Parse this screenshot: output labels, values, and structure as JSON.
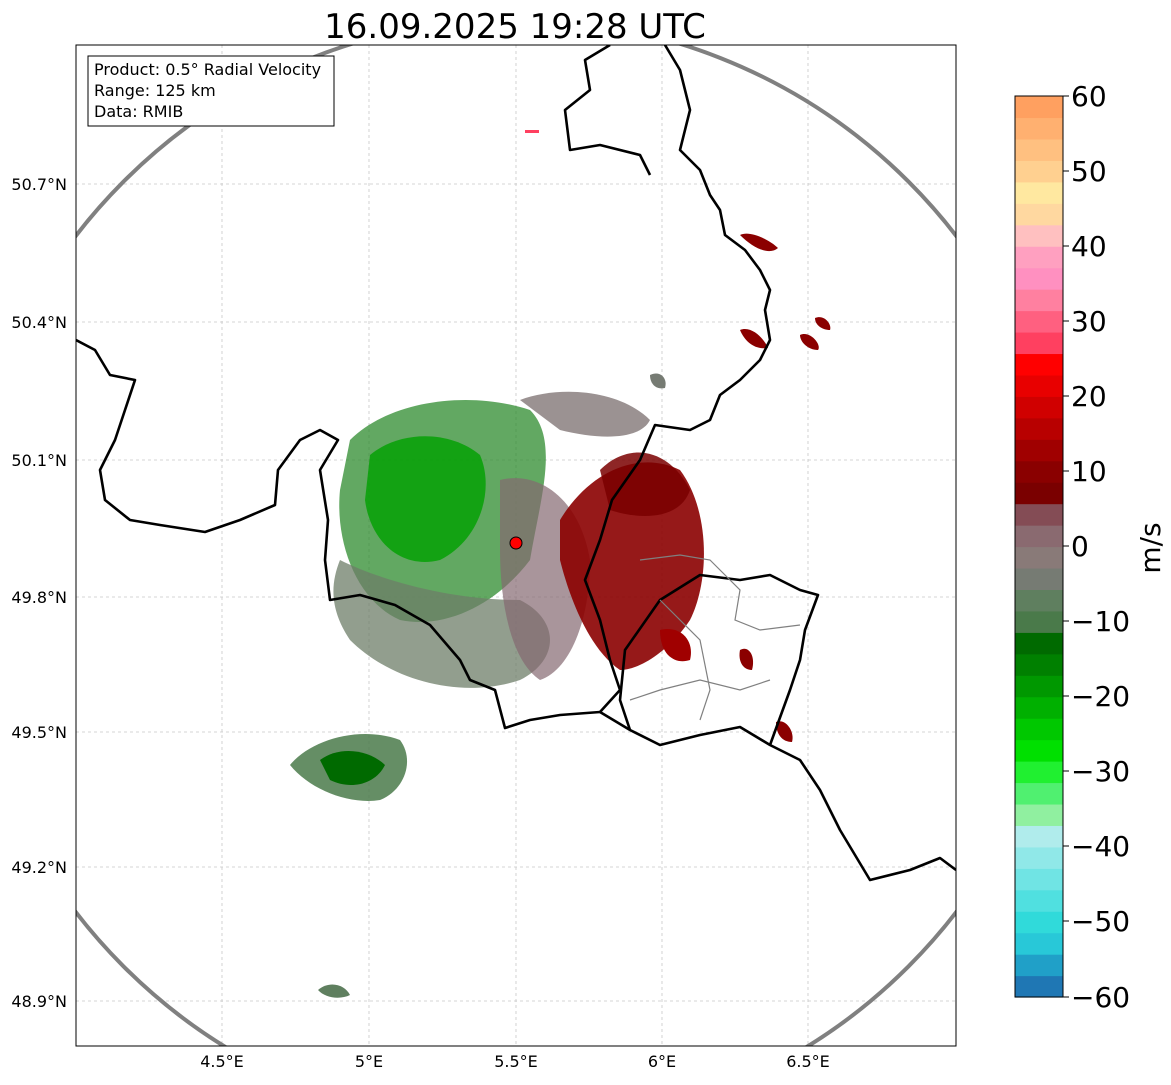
{
  "title": "16.09.2025 19:28 UTC",
  "info_box": {
    "product": "Product: 0.5° Radial Velocity",
    "range": "Range: 125 km",
    "data": "Data: RMIB"
  },
  "map": {
    "lat_ticks": [
      "50.7°N",
      "50.4°N",
      "50.1°N",
      "49.8°N",
      "49.5°N",
      "49.2°N",
      "48.9°N"
    ],
    "lon_ticks": [
      "4.5°E",
      "5°E",
      "5.5°E",
      "6°E",
      "6.5°E"
    ],
    "radar_site": {
      "lat": 49.914,
      "lon": 5.505
    },
    "range_km": 125
  },
  "colorbar": {
    "label": "m/s",
    "ticks": [
      "60",
      "50",
      "40",
      "30",
      "20",
      "10",
      "0",
      "−10",
      "−20",
      "−30",
      "−40",
      "−50",
      "−60"
    ],
    "min": -60,
    "max": 60,
    "colors": [
      "#1f77b4",
      "#20a0c8",
      "#28c8d8",
      "#30dada",
      "#50e0e0",
      "#70e4e4",
      "#90e8e8",
      "#b0ecec",
      "#90f0a0",
      "#50f070",
      "#20f030",
      "#00e000",
      "#00c800",
      "#00b000",
      "#009800",
      "#008000",
      "#006a00",
      "#4a7a4a",
      "#5f7f5f",
      "#767b73",
      "#897a78",
      "#8a6a70",
      "#844c55",
      "#7a0000",
      "#8a0000",
      "#a00000",
      "#b80000",
      "#d00000",
      "#e80000",
      "#ff0000",
      "#ff4060",
      "#ff6080",
      "#ff80a0",
      "#ff90c0",
      "#ffa0c0",
      "#ffc0c0",
      "#ffd8a0",
      "#ffe8a0",
      "#ffd090",
      "#ffc080",
      "#ffb070",
      "#ffa060"
    ]
  }
}
